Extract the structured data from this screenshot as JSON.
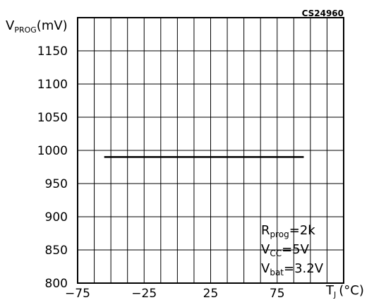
{
  "chart_data": {
    "type": "line",
    "figure_code": "CS24960",
    "ylabel": {
      "main": "V",
      "sub": "PROG",
      "unit": "(mV)"
    },
    "xlabel": {
      "main": "T",
      "sub": "J",
      "unit": "(°C)"
    },
    "xlim": [
      -75,
      125
    ],
    "ylim": [
      800,
      1200
    ],
    "x_ticks": [
      -75,
      -25,
      25,
      75
    ],
    "x_tick_labels": [
      "−75",
      "−25",
      "25",
      "75"
    ],
    "y_ticks": [
      800,
      850,
      900,
      950,
      1000,
      1050,
      1100,
      1150
    ],
    "grid": true,
    "series": [
      {
        "x": [
          -55,
          95
        ],
        "y": [
          990,
          990
        ]
      }
    ],
    "conditions": [
      {
        "main": "R",
        "sub": "prog",
        "value": "=2k"
      },
      {
        "main": "V",
        "sub": "CC",
        "value": "=5V"
      },
      {
        "main": "V",
        "sub": "bat",
        "value": "=3.2V"
      }
    ]
  }
}
